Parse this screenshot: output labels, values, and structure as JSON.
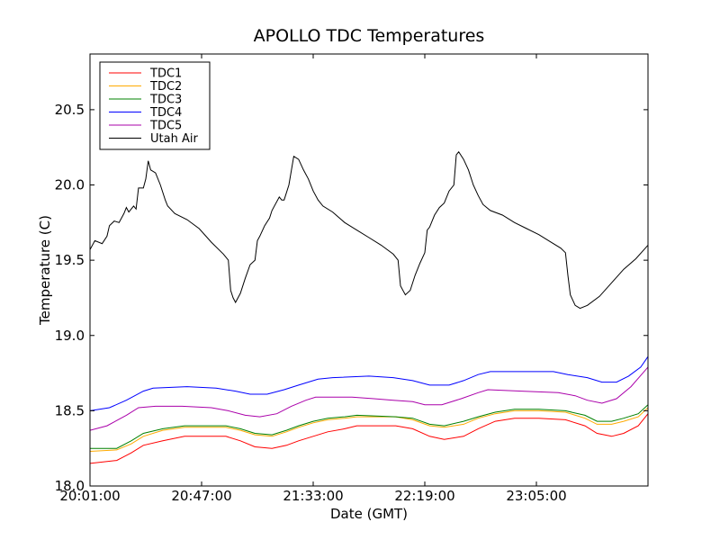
{
  "chart_data": {
    "type": "line",
    "title": "APOLLO TDC Temperatures",
    "xlabel": "Date (GMT)",
    "ylabel": "Temperature (C)",
    "xlim_minutes": [
      0,
      230
    ],
    "ylim": [
      18.0,
      20.87
    ],
    "legend_position": "top-left",
    "x_ticks": [
      {
        "label": "20:01:00",
        "minute": 0
      },
      {
        "label": "20:47:00",
        "minute": 46
      },
      {
        "label": "21:33:00",
        "minute": 92
      },
      {
        "label": "22:19:00",
        "minute": 138
      },
      {
        "label": "23:05:00",
        "minute": 184
      }
    ],
    "y_ticks": [
      {
        "label": "18.0",
        "value": 18.0
      },
      {
        "label": "18.5",
        "value": 18.5
      },
      {
        "label": "19.0",
        "value": 19.0
      },
      {
        "label": "19.5",
        "value": 19.5
      },
      {
        "label": "20.0",
        "value": 20.0
      },
      {
        "label": "20.5",
        "value": 20.5
      }
    ],
    "series": [
      {
        "name": "TDC1",
        "color": "#ff0000",
        "points": [
          [
            0,
            18.15
          ],
          [
            11,
            18.17
          ],
          [
            17,
            18.22
          ],
          [
            22,
            18.27
          ],
          [
            30,
            18.3
          ],
          [
            39,
            18.33
          ],
          [
            56,
            18.33
          ],
          [
            62,
            18.3
          ],
          [
            68,
            18.26
          ],
          [
            75,
            18.25
          ],
          [
            81,
            18.27
          ],
          [
            86,
            18.3
          ],
          [
            92,
            18.33
          ],
          [
            98,
            18.36
          ],
          [
            105,
            18.38
          ],
          [
            110,
            18.4
          ],
          [
            126,
            18.4
          ],
          [
            133,
            18.38
          ],
          [
            140,
            18.33
          ],
          [
            146,
            18.31
          ],
          [
            154,
            18.33
          ],
          [
            160,
            18.38
          ],
          [
            167,
            18.43
          ],
          [
            175,
            18.45
          ],
          [
            185,
            18.45
          ],
          [
            196,
            18.44
          ],
          [
            204,
            18.4
          ],
          [
            209,
            18.35
          ],
          [
            215,
            18.33
          ],
          [
            220,
            18.35
          ],
          [
            226,
            18.4
          ],
          [
            230,
            18.48
          ]
        ]
      },
      {
        "name": "TDC2",
        "color": "#ffaa00",
        "points": [
          [
            0,
            18.23
          ],
          [
            11,
            18.24
          ],
          [
            17,
            18.28
          ],
          [
            22,
            18.33
          ],
          [
            30,
            18.37
          ],
          [
            39,
            18.39
          ],
          [
            56,
            18.39
          ],
          [
            62,
            18.37
          ],
          [
            68,
            18.34
          ],
          [
            75,
            18.33
          ],
          [
            81,
            18.36
          ],
          [
            86,
            18.39
          ],
          [
            92,
            18.42
          ],
          [
            98,
            18.44
          ],
          [
            105,
            18.45
          ],
          [
            110,
            18.46
          ],
          [
            126,
            18.46
          ],
          [
            133,
            18.44
          ],
          [
            140,
            18.4
          ],
          [
            146,
            18.39
          ],
          [
            154,
            18.41
          ],
          [
            160,
            18.45
          ],
          [
            167,
            18.48
          ],
          [
            175,
            18.5
          ],
          [
            185,
            18.5
          ],
          [
            196,
            18.49
          ],
          [
            204,
            18.45
          ],
          [
            209,
            18.41
          ],
          [
            215,
            18.41
          ],
          [
            220,
            18.43
          ],
          [
            226,
            18.46
          ],
          [
            230,
            18.52
          ]
        ]
      },
      {
        "name": "TDC3",
        "color": "#008000",
        "points": [
          [
            0,
            18.25
          ],
          [
            11,
            18.25
          ],
          [
            17,
            18.3
          ],
          [
            22,
            18.35
          ],
          [
            30,
            18.38
          ],
          [
            39,
            18.4
          ],
          [
            56,
            18.4
          ],
          [
            62,
            18.38
          ],
          [
            68,
            18.35
          ],
          [
            75,
            18.34
          ],
          [
            81,
            18.37
          ],
          [
            86,
            18.4
          ],
          [
            92,
            18.43
          ],
          [
            98,
            18.45
          ],
          [
            105,
            18.46
          ],
          [
            110,
            18.47
          ],
          [
            126,
            18.46
          ],
          [
            133,
            18.45
          ],
          [
            140,
            18.41
          ],
          [
            146,
            18.4
          ],
          [
            154,
            18.43
          ],
          [
            160,
            18.46
          ],
          [
            167,
            18.49
          ],
          [
            175,
            18.51
          ],
          [
            185,
            18.51
          ],
          [
            196,
            18.5
          ],
          [
            204,
            18.47
          ],
          [
            209,
            18.43
          ],
          [
            215,
            18.43
          ],
          [
            220,
            18.45
          ],
          [
            226,
            18.48
          ],
          [
            230,
            18.54
          ]
        ]
      },
      {
        "name": "TDC4",
        "color": "#0000ff",
        "points": [
          [
            0,
            18.5
          ],
          [
            8,
            18.52
          ],
          [
            15,
            18.57
          ],
          [
            22,
            18.63
          ],
          [
            26,
            18.65
          ],
          [
            40,
            18.66
          ],
          [
            52,
            18.65
          ],
          [
            60,
            18.63
          ],
          [
            66,
            18.61
          ],
          [
            73,
            18.61
          ],
          [
            80,
            18.64
          ],
          [
            86,
            18.67
          ],
          [
            94,
            18.71
          ],
          [
            100,
            18.72
          ],
          [
            115,
            18.73
          ],
          [
            125,
            18.72
          ],
          [
            133,
            18.7
          ],
          [
            140,
            18.67
          ],
          [
            148,
            18.67
          ],
          [
            154,
            18.7
          ],
          [
            160,
            18.74
          ],
          [
            165,
            18.76
          ],
          [
            180,
            18.76
          ],
          [
            191,
            18.76
          ],
          [
            197,
            18.74
          ],
          [
            205,
            18.72
          ],
          [
            211,
            18.69
          ],
          [
            217,
            18.69
          ],
          [
            222,
            18.73
          ],
          [
            227,
            18.79
          ],
          [
            230,
            18.86
          ]
        ]
      },
      {
        "name": "TDC5",
        "color": "#aa00aa",
        "points": [
          [
            0,
            18.37
          ],
          [
            7,
            18.4
          ],
          [
            15,
            18.47
          ],
          [
            20,
            18.52
          ],
          [
            27,
            18.53
          ],
          [
            38,
            18.53
          ],
          [
            50,
            18.52
          ],
          [
            57,
            18.5
          ],
          [
            64,
            18.47
          ],
          [
            70,
            18.46
          ],
          [
            77,
            18.48
          ],
          [
            83,
            18.53
          ],
          [
            89,
            18.57
          ],
          [
            93,
            18.59
          ],
          [
            108,
            18.59
          ],
          [
            117,
            18.58
          ],
          [
            125,
            18.57
          ],
          [
            133,
            18.56
          ],
          [
            138,
            18.54
          ],
          [
            145,
            18.54
          ],
          [
            153,
            18.58
          ],
          [
            160,
            18.62
          ],
          [
            164,
            18.64
          ],
          [
            178,
            18.63
          ],
          [
            193,
            18.62
          ],
          [
            200,
            18.6
          ],
          [
            205,
            18.57
          ],
          [
            211,
            18.55
          ],
          [
            217,
            18.58
          ],
          [
            223,
            18.66
          ],
          [
            230,
            18.79
          ]
        ]
      },
      {
        "name": "Utah Air",
        "color": "#000000",
        "points": [
          [
            0,
            19.57
          ],
          [
            2,
            19.63
          ],
          [
            5,
            19.61
          ],
          [
            7,
            19.66
          ],
          [
            8,
            19.73
          ],
          [
            10,
            19.76
          ],
          [
            12,
            19.75
          ],
          [
            14,
            19.81
          ],
          [
            15,
            19.85
          ],
          [
            16,
            19.82
          ],
          [
            18,
            19.86
          ],
          [
            19,
            19.84
          ],
          [
            20,
            19.98
          ],
          [
            22,
            19.98
          ],
          [
            23,
            20.04
          ],
          [
            24,
            20.16
          ],
          [
            25,
            20.1
          ],
          [
            27,
            20.08
          ],
          [
            29,
            20.0
          ],
          [
            31,
            19.9
          ],
          [
            32,
            19.86
          ],
          [
            35,
            19.81
          ],
          [
            40,
            19.77
          ],
          [
            45,
            19.71
          ],
          [
            50,
            19.62
          ],
          [
            55,
            19.54
          ],
          [
            57,
            19.5
          ],
          [
            58,
            19.3
          ],
          [
            59,
            19.25
          ],
          [
            60,
            19.22
          ],
          [
            62,
            19.28
          ],
          [
            64,
            19.38
          ],
          [
            66,
            19.47
          ],
          [
            68,
            19.5
          ],
          [
            69,
            19.63
          ],
          [
            70,
            19.66
          ],
          [
            72,
            19.73
          ],
          [
            74,
            19.78
          ],
          [
            75,
            19.83
          ],
          [
            78,
            19.92
          ],
          [
            79,
            19.9
          ],
          [
            80,
            19.9
          ],
          [
            82,
            20.0
          ],
          [
            84,
            20.19
          ],
          [
            86,
            20.17
          ],
          [
            88,
            20.1
          ],
          [
            90,
            20.04
          ],
          [
            92,
            19.96
          ],
          [
            94,
            19.9
          ],
          [
            96,
            19.86
          ],
          [
            100,
            19.82
          ],
          [
            105,
            19.75
          ],
          [
            110,
            19.7
          ],
          [
            115,
            19.65
          ],
          [
            120,
            19.6
          ],
          [
            125,
            19.54
          ],
          [
            127,
            19.5
          ],
          [
            128,
            19.33
          ],
          [
            130,
            19.27
          ],
          [
            132,
            19.3
          ],
          [
            134,
            19.4
          ],
          [
            136,
            19.48
          ],
          [
            138,
            19.55
          ],
          [
            139,
            19.7
          ],
          [
            140,
            19.72
          ],
          [
            142,
            19.8
          ],
          [
            144,
            19.85
          ],
          [
            146,
            19.88
          ],
          [
            148,
            19.96
          ],
          [
            150,
            20.0
          ],
          [
            151,
            20.2
          ],
          [
            152,
            20.22
          ],
          [
            154,
            20.17
          ],
          [
            156,
            20.1
          ],
          [
            158,
            20.0
          ],
          [
            160,
            19.93
          ],
          [
            162,
            19.87
          ],
          [
            165,
            19.83
          ],
          [
            170,
            19.8
          ],
          [
            175,
            19.75
          ],
          [
            180,
            19.71
          ],
          [
            185,
            19.67
          ],
          [
            190,
            19.62
          ],
          [
            194,
            19.58
          ],
          [
            196,
            19.55
          ],
          [
            197,
            19.4
          ],
          [
            198,
            19.27
          ],
          [
            200,
            19.2
          ],
          [
            202,
            19.18
          ],
          [
            205,
            19.2
          ],
          [
            210,
            19.26
          ],
          [
            215,
            19.35
          ],
          [
            220,
            19.44
          ],
          [
            225,
            19.51
          ],
          [
            230,
            19.6
          ]
        ]
      }
    ]
  }
}
